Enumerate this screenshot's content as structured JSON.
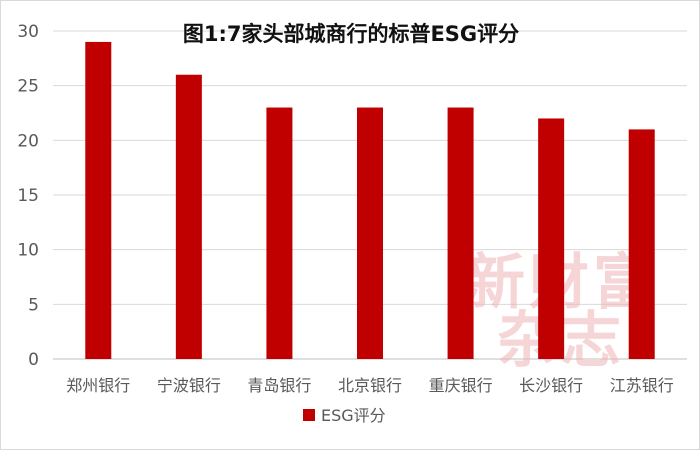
{
  "chart_data": {
    "type": "bar",
    "title": "图1:7家头部城商行的标普ESG评分",
    "categories": [
      "郑州银行",
      "宁波银行",
      "青岛银行",
      "北京银行",
      "重庆银行",
      "长沙银行",
      "江苏银行"
    ],
    "series": [
      {
        "name": "ESG评分",
        "values": [
          29,
          26,
          23,
          23,
          23,
          22,
          21
        ],
        "color": "#c00000"
      }
    ],
    "ylim": [
      0,
      30
    ],
    "yticks": [
      0,
      5,
      10,
      15,
      20,
      25,
      30
    ],
    "grid": true,
    "legend_position": "bottom"
  },
  "watermark": {
    "line1": "新财富",
    "line2": "杂志"
  }
}
